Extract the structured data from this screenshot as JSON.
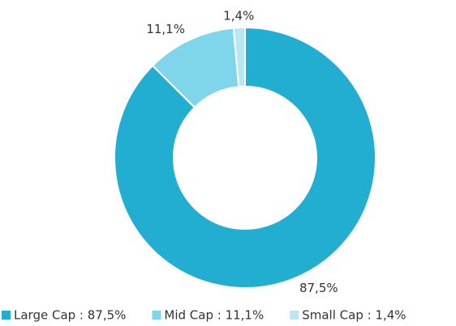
{
  "chart_data": {
    "type": "donut",
    "categories": [
      "Large Cap : 87,5%",
      "Mid Cap : 11,1%",
      "Small Cap : 1,4%"
    ],
    "values": [
      87.5,
      11.1,
      1.4
    ],
    "value_labels": [
      "87,5%",
      "11,1%",
      "1,4%"
    ],
    "colors": [
      "#22aed1",
      "#7fd6ea",
      "#b8e6f2"
    ],
    "legend": "bottom"
  }
}
